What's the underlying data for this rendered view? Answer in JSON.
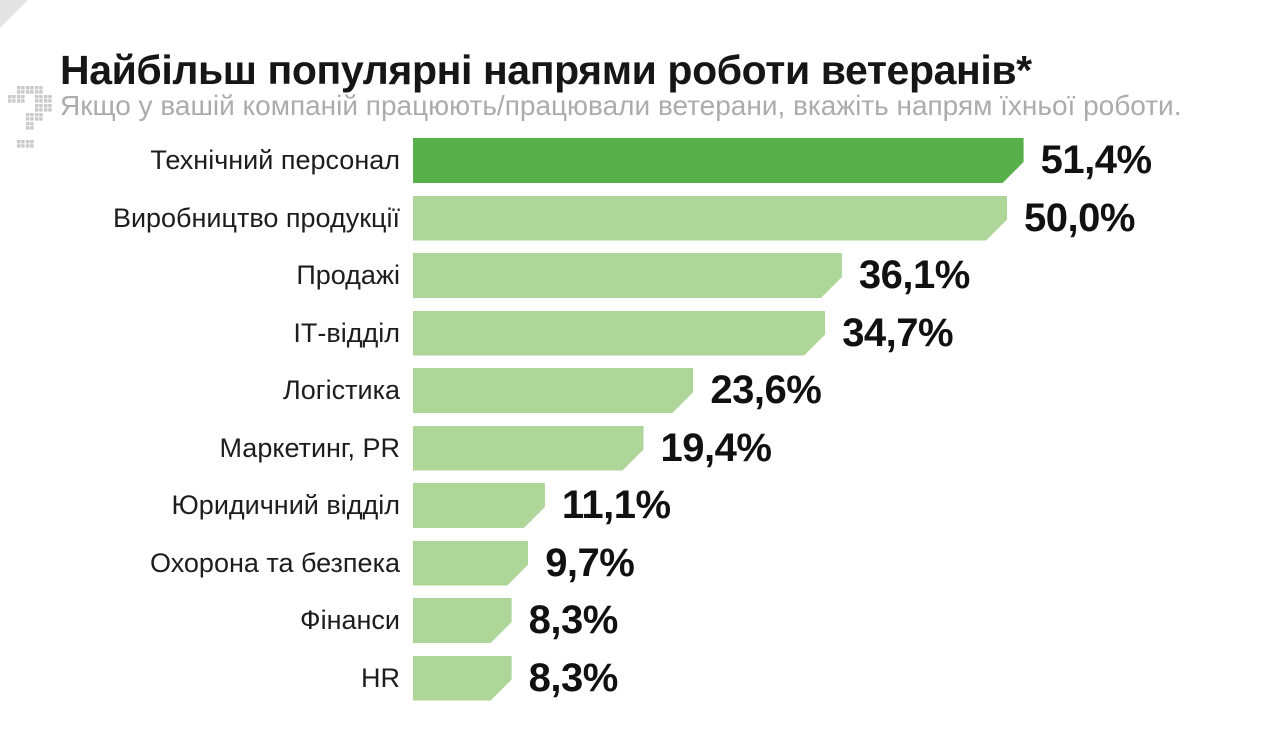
{
  "page": {
    "title": "Найбільш популярні напрями роботи ветеранів*",
    "subtitle": "Якщо у вашій компаній працюють/працювали ветерани, вкажіть напрям їхньої роботи."
  },
  "icons": {
    "question_mark": "pixelated-question-mark-icon"
  },
  "colors": {
    "bar_highlight": "#57b04a",
    "bar_default": "#aed699",
    "title_text": "#161616",
    "subtitle_text": "#acacac",
    "value_text": "#111111",
    "corner_fold": "#e4e4e4",
    "icon_gray": "#c8c8c8"
  },
  "chart_data": {
    "type": "bar",
    "orientation": "horizontal",
    "title": "Найбільш популярні напрями роботи ветеранів*",
    "subtitle": "Якщо у вашій компаній працюють/працювали ветерани, вкажіть напрям їхньої роботи.",
    "categories": [
      "Технічний персонал",
      "Виробництво продукції",
      "Продажі",
      "ІТ-відділ",
      "Логістика",
      "Маркетинг, PR",
      "Юридичний відділ",
      "Охорона та безпека",
      "Фінанси",
      "HR"
    ],
    "values": [
      51.4,
      50.0,
      36.1,
      34.7,
      23.6,
      19.4,
      11.1,
      9.7,
      8.3,
      8.3
    ],
    "value_labels": [
      "51,4%",
      "50,0%",
      "36,1%",
      "34,7%",
      "23,6%",
      "19,4%",
      "11,1%",
      "9,7%",
      "8,3%",
      "8,3%"
    ],
    "xlim": [
      0,
      55
    ],
    "highlight_index": 0,
    "grid": false,
    "legend": false
  }
}
